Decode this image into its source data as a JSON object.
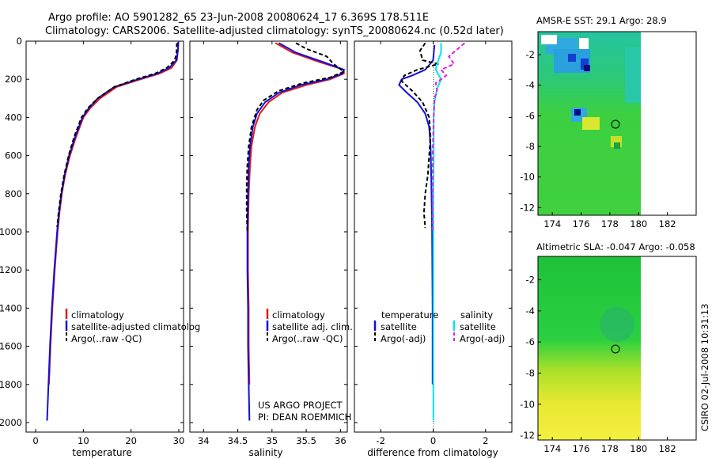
{
  "header": {
    "line1": "Argo profile: AO 5901282_65 23-Jun-2008 20080624_17 6.369S 178.511E",
    "line2": "Climatology: CARS2006. Satellite-adjusted climatology: synTS_20080624.nc (0.52d later)"
  },
  "side_label": "CSIRO 02-Jul-2008 10:31:13",
  "project_note": {
    "line1": "US ARGO PROJECT",
    "line2": "PI: DEAN ROEMMICH"
  },
  "colors": {
    "climatology": "#e41a1c",
    "satellite": "#1010d8",
    "argo": "#000000",
    "salinity_satellite": "#00e5ee",
    "salinity_argo": "#e020e0"
  },
  "chart_data": [
    {
      "type": "line",
      "id": "temperature",
      "xlabel": "temperature",
      "xlim": [
        -2,
        31
      ],
      "ylim": [
        0,
        2050
      ],
      "y_inverted": true,
      "xticks": [
        0,
        10,
        20,
        30
      ],
      "yticks": [
        0,
        200,
        400,
        600,
        800,
        1000,
        1200,
        1400,
        1600,
        1800,
        2000
      ],
      "legend": {
        "position": "lower-right",
        "entries": [
          "climatology",
          "satellite-adjusted climatolog",
          "Argo(..raw -QC)"
        ]
      },
      "series": [
        {
          "name": "climatology",
          "color": "climatology",
          "style": "solid",
          "points": [
            [
              29.9,
              5
            ],
            [
              29.8,
              50
            ],
            [
              29.6,
              100
            ],
            [
              28.5,
              140
            ],
            [
              26,
              170
            ],
            [
              22,
              200
            ],
            [
              17,
              240
            ],
            [
              13.5,
              300
            ],
            [
              11.5,
              350
            ],
            [
              10,
              400
            ],
            [
              8.5,
              500
            ],
            [
              7.2,
              600
            ],
            [
              6.2,
              700
            ],
            [
              5.5,
              800
            ],
            [
              5,
              900
            ],
            [
              4.6,
              1000
            ],
            [
              4,
              1200
            ],
            [
              3.5,
              1400
            ],
            [
              3.1,
              1600
            ],
            [
              2.8,
              1800
            ]
          ]
        },
        {
          "name": "satellite-adjusted climatolog",
          "color": "satellite",
          "style": "solid",
          "points": [
            [
              29.9,
              5
            ],
            [
              29.8,
              50
            ],
            [
              29.5,
              100
            ],
            [
              28,
              140
            ],
            [
              25.5,
              170
            ],
            [
              21.5,
              200
            ],
            [
              16.5,
              240
            ],
            [
              13,
              300
            ],
            [
              11.2,
              350
            ],
            [
              9.8,
              400
            ],
            [
              8.3,
              500
            ],
            [
              7,
              600
            ],
            [
              6.1,
              700
            ],
            [
              5.4,
              800
            ],
            [
              4.9,
              900
            ],
            [
              4.5,
              1000
            ],
            [
              3.9,
              1200
            ],
            [
              3.4,
              1400
            ],
            [
              3,
              1600
            ],
            [
              2.7,
              1800
            ],
            [
              2.4,
              1990
            ]
          ]
        },
        {
          "name": "Argo(..raw -QC)",
          "color": "argo",
          "style": "dashed",
          "points": [
            [
              29.6,
              10
            ],
            [
              29.5,
              60
            ],
            [
              29.2,
              100
            ],
            [
              27.5,
              140
            ],
            [
              25,
              170
            ],
            [
              21,
              200
            ],
            [
              16.5,
              240
            ],
            [
              13,
              300
            ],
            [
              11,
              350
            ],
            [
              9.6,
              400
            ],
            [
              8.1,
              500
            ],
            [
              6.9,
              600
            ],
            [
              6,
              700
            ],
            [
              5.3,
              800
            ],
            [
              4.8,
              900
            ],
            [
              4.5,
              975
            ]
          ]
        }
      ]
    },
    {
      "type": "line",
      "id": "salinity",
      "xlabel": "salinity",
      "xlim": [
        33.8,
        36.1
      ],
      "ylim": [
        0,
        2050
      ],
      "y_inverted": true,
      "xticks": [
        34,
        34.5,
        35,
        35.5,
        36
      ],
      "legend": {
        "position": "lower-right",
        "entries": [
          "climatology",
          "satellite adj. clim.",
          "Argo(..raw -QC)"
        ]
      },
      "series": [
        {
          "name": "climatology",
          "color": "climatology",
          "style": "solid",
          "points": [
            [
              35.05,
              10
            ],
            [
              35.3,
              60
            ],
            [
              35.7,
              110
            ],
            [
              36.05,
              150
            ],
            [
              36.05,
              170
            ],
            [
              35.85,
              200
            ],
            [
              35.5,
              230
            ],
            [
              35.15,
              270
            ],
            [
              34.95,
              320
            ],
            [
              34.82,
              380
            ],
            [
              34.75,
              450
            ],
            [
              34.7,
              550
            ],
            [
              34.68,
              650
            ],
            [
              34.66,
              800
            ],
            [
              34.65,
              1000
            ],
            [
              34.65,
              1200
            ],
            [
              34.66,
              1400
            ],
            [
              34.66,
              1600
            ],
            [
              34.67,
              1800
            ]
          ]
        },
        {
          "name": "satellite adj. clim.",
          "color": "satellite",
          "style": "solid",
          "points": [
            [
              35.1,
              10
            ],
            [
              35.35,
              60
            ],
            [
              35.75,
              110
            ],
            [
              36.05,
              150
            ],
            [
              36.03,
              170
            ],
            [
              35.8,
              200
            ],
            [
              35.42,
              230
            ],
            [
              35.1,
              270
            ],
            [
              34.9,
              320
            ],
            [
              34.78,
              380
            ],
            [
              34.72,
              450
            ],
            [
              34.68,
              550
            ],
            [
              34.66,
              650
            ],
            [
              34.65,
              800
            ],
            [
              34.64,
              1000
            ],
            [
              34.64,
              1200
            ],
            [
              34.65,
              1400
            ],
            [
              34.65,
              1600
            ],
            [
              34.66,
              1800
            ],
            [
              34.67,
              1990
            ]
          ]
        },
        {
          "name": "Argo(..raw -QC)",
          "color": "argo",
          "style": "dashed",
          "points": [
            [
              35.35,
              10
            ],
            [
              35.5,
              40
            ],
            [
              35.8,
              80
            ],
            [
              35.9,
              120
            ],
            [
              36.05,
              160
            ],
            [
              35.85,
              190
            ],
            [
              35.45,
              220
            ],
            [
              35.1,
              260
            ],
            [
              34.88,
              310
            ],
            [
              34.78,
              360
            ],
            [
              34.7,
              450
            ],
            [
              34.66,
              550
            ],
            [
              34.64,
              650
            ],
            [
              34.63,
              750
            ],
            [
              34.63,
              900
            ],
            [
              34.64,
              1000
            ]
          ]
        }
      ]
    },
    {
      "type": "line",
      "id": "difference",
      "xlabel": "difference from climatology",
      "xlim": [
        -3,
        3
      ],
      "ylim": [
        0,
        2050
      ],
      "y_inverted": true,
      "xticks": [
        -2,
        0,
        2
      ],
      "legend": {
        "position": "lower-center",
        "headers": [
          "temperature",
          "salinity"
        ],
        "entries": [
          "satellite",
          "Argo(-adj)",
          "satellite",
          "Argo(-adj)"
        ]
      },
      "series": [
        {
          "name": "temperature satellite",
          "color": "satellite",
          "style": "solid",
          "points": [
            [
              0.05,
              20
            ],
            [
              0,
              100
            ],
            [
              -0.3,
              150
            ],
            [
              -0.8,
              180
            ],
            [
              -1.2,
              200
            ],
            [
              -1.3,
              230
            ],
            [
              -1,
              270
            ],
            [
              -0.6,
              320
            ],
            [
              -0.3,
              380
            ],
            [
              -0.15,
              450
            ],
            [
              -0.1,
              550
            ],
            [
              -0.08,
              650
            ],
            [
              -0.06,
              800
            ],
            [
              -0.04,
              1000
            ],
            [
              -0.03,
              1200
            ],
            [
              -0.02,
              1400
            ],
            [
              -0.02,
              1600
            ],
            [
              -0.02,
              1800
            ]
          ]
        },
        {
          "name": "temperature Argo(-adj)",
          "color": "argo",
          "style": "dashed",
          "points": [
            [
              -0.3,
              10
            ],
            [
              -0.5,
              50
            ],
            [
              -0.4,
              100
            ],
            [
              0.2,
              120
            ],
            [
              -0.6,
              150
            ],
            [
              -1.1,
              180
            ],
            [
              -1.2,
              210
            ],
            [
              -0.8,
              260
            ],
            [
              -0.4,
              320
            ],
            [
              -0.15,
              400
            ],
            [
              -0.1,
              500
            ],
            [
              -0.15,
              600
            ],
            [
              -0.2,
              700
            ],
            [
              -0.3,
              800
            ],
            [
              -0.35,
              900
            ],
            [
              -0.3,
              980
            ]
          ]
        },
        {
          "name": "salinity satellite",
          "color": "salinity_satellite",
          "style": "solid",
          "points": [
            [
              0.3,
              10
            ],
            [
              0.3,
              60
            ],
            [
              0.2,
              100
            ],
            [
              0.1,
              150
            ],
            [
              0.3,
              200
            ],
            [
              0.15,
              250
            ],
            [
              0.05,
              320
            ],
            [
              0.02,
              400
            ],
            [
              0.02,
              600
            ],
            [
              0.01,
              800
            ],
            [
              0.01,
              1000
            ],
            [
              0.01,
              1200
            ],
            [
              0.01,
              1400
            ],
            [
              0.01,
              1600
            ],
            [
              0.01,
              1800
            ],
            [
              0.01,
              1990
            ]
          ]
        },
        {
          "name": "salinity Argo(-adj)",
          "color": "salinity_argo",
          "style": "dashed",
          "points": [
            [
              1.2,
              10
            ],
            [
              0.6,
              80
            ],
            [
              0.8,
              120
            ],
            [
              0.3,
              150
            ],
            [
              0.5,
              180
            ],
            [
              0.1,
              220
            ],
            [
              0.15,
              260
            ],
            [
              0.05,
              300
            ],
            [
              0.02,
              400
            ],
            [
              -0.02,
              600
            ],
            [
              -0.02,
              800
            ],
            [
              -0.02,
              1000
            ]
          ]
        }
      ]
    },
    {
      "type": "heatmap",
      "id": "sst_map",
      "title": "AMSR-E SST: 29.1  Argo: 28.9",
      "xlim": [
        173,
        184
      ],
      "ylim": [
        -12.5,
        -0.5
      ],
      "xticks": [
        174,
        176,
        178,
        180,
        182
      ],
      "yticks": [
        -2,
        -4,
        -6,
        -8,
        -10,
        -12
      ],
      "argo_position": [
        178.511,
        -6.369
      ]
    },
    {
      "type": "heatmap",
      "id": "sla_map",
      "title": "Altimetric SLA: -0.047  Argo: -0.058",
      "xlim": [
        173,
        184
      ],
      "ylim": [
        -12.3,
        -0.5
      ],
      "xticks": [
        174,
        176,
        178,
        180,
        182
      ],
      "yticks": [
        -2,
        -4,
        -6,
        -8,
        -10,
        -12
      ],
      "argo_position": [
        178.511,
        -6.369
      ]
    }
  ]
}
